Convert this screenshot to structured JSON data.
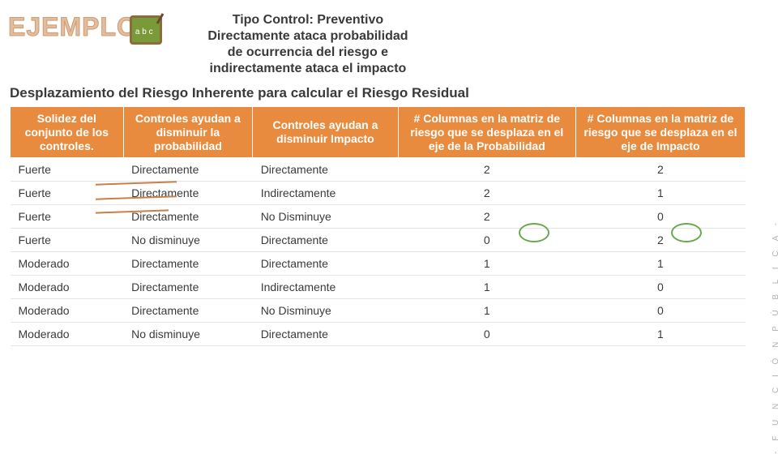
{
  "header": {
    "ejemplo": "EJEMPLO",
    "board_letters": "a b c",
    "line1_label": "Tipo Control: ",
    "line1_value": "Preventivo",
    "line2": "Directamente ataca probabilidad de ocurrencia del riesgo e indirectamente ataca el impacto"
  },
  "subtitle": "Desplazamiento del Riesgo Inherente para calcular el Riesgo Residual",
  "side_label": "- F U N C I Ó N   P Ú B L I C A -",
  "table": {
    "columns": [
      "Solidez del conjunto de los controles.",
      "Controles ayudan a disminuir la probabilidad",
      "Controles ayudan a disminuir Impacto",
      "# Columnas en la matriz de riesgo que se desplaza en el eje de la Probabilidad",
      "# Columnas en la matriz de riesgo que se desplaza en el eje de Impacto"
    ],
    "col_widths": [
      "140px",
      "160px",
      "180px",
      "220px",
      "210px"
    ],
    "rows": [
      [
        "Fuerte",
        "Directamente",
        "Directamente",
        "2",
        "2"
      ],
      [
        "Fuerte",
        "Directamente",
        "Indirectamente",
        "2",
        "1"
      ],
      [
        "Fuerte",
        "Directamente",
        "No Disminuye",
        "2",
        "0"
      ],
      [
        "Fuerte",
        "No disminuye",
        "Directamente",
        "0",
        "2"
      ],
      [
        "Moderado",
        "Directamente",
        "Directamente",
        "1",
        "1"
      ],
      [
        "Moderado",
        "Directamente",
        "Indirectamente",
        "1",
        "0"
      ],
      [
        "Moderado",
        "Directamente",
        "No Disminuye",
        "1",
        "0"
      ],
      [
        "Moderado",
        "No disminuye",
        "Directamente",
        "0",
        "1"
      ]
    ]
  },
  "colors": {
    "header_bg": "#e98b3e",
    "header_fg": "#ffffff",
    "ejemplo_color": "#e0bda0",
    "ring_color": "#6aa84f"
  }
}
